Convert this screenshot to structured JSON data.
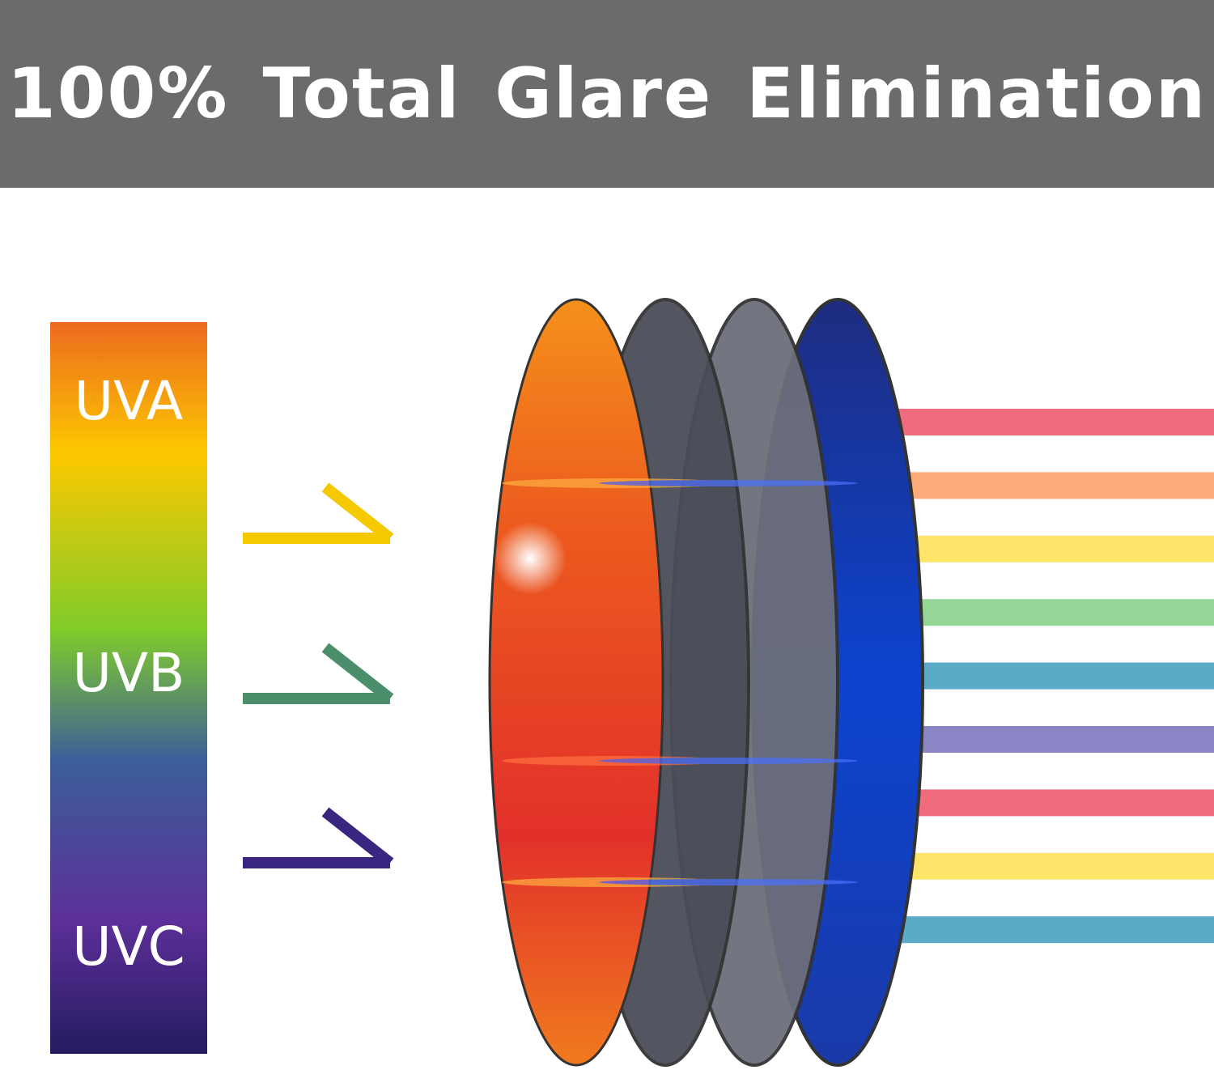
{
  "header": {
    "title": "100% Total Glare Elimination",
    "background": "#6b6b6b"
  },
  "spectrum": {
    "labels": [
      "UVA",
      "UVB",
      "UVC"
    ],
    "gradient_colors": [
      "#ec6a1f",
      "#fdc800",
      "#80cc2a",
      "#3c5e9a",
      "#5c2f98",
      "#241c60"
    ]
  },
  "arrows": [
    {
      "color": "#f5c800"
    },
    {
      "color": "#4a8e6c"
    },
    {
      "color": "#3a2580"
    }
  ],
  "lenses": [
    {
      "layer": "orange",
      "color": "#f05a1c"
    },
    {
      "layer": "dark-gray",
      "color": "#4a4d58"
    },
    {
      "layer": "gray",
      "color": "#6c6e7a"
    },
    {
      "layer": "blue",
      "color": "#1a3fc0"
    }
  ],
  "output_stripes": [
    "#f06c7c",
    "#fdaa78",
    "#fde56a",
    "#95d596",
    "#5aaac8",
    "#8a86c6",
    "#f06c7c",
    "#fde56a",
    "#5aaac8"
  ]
}
